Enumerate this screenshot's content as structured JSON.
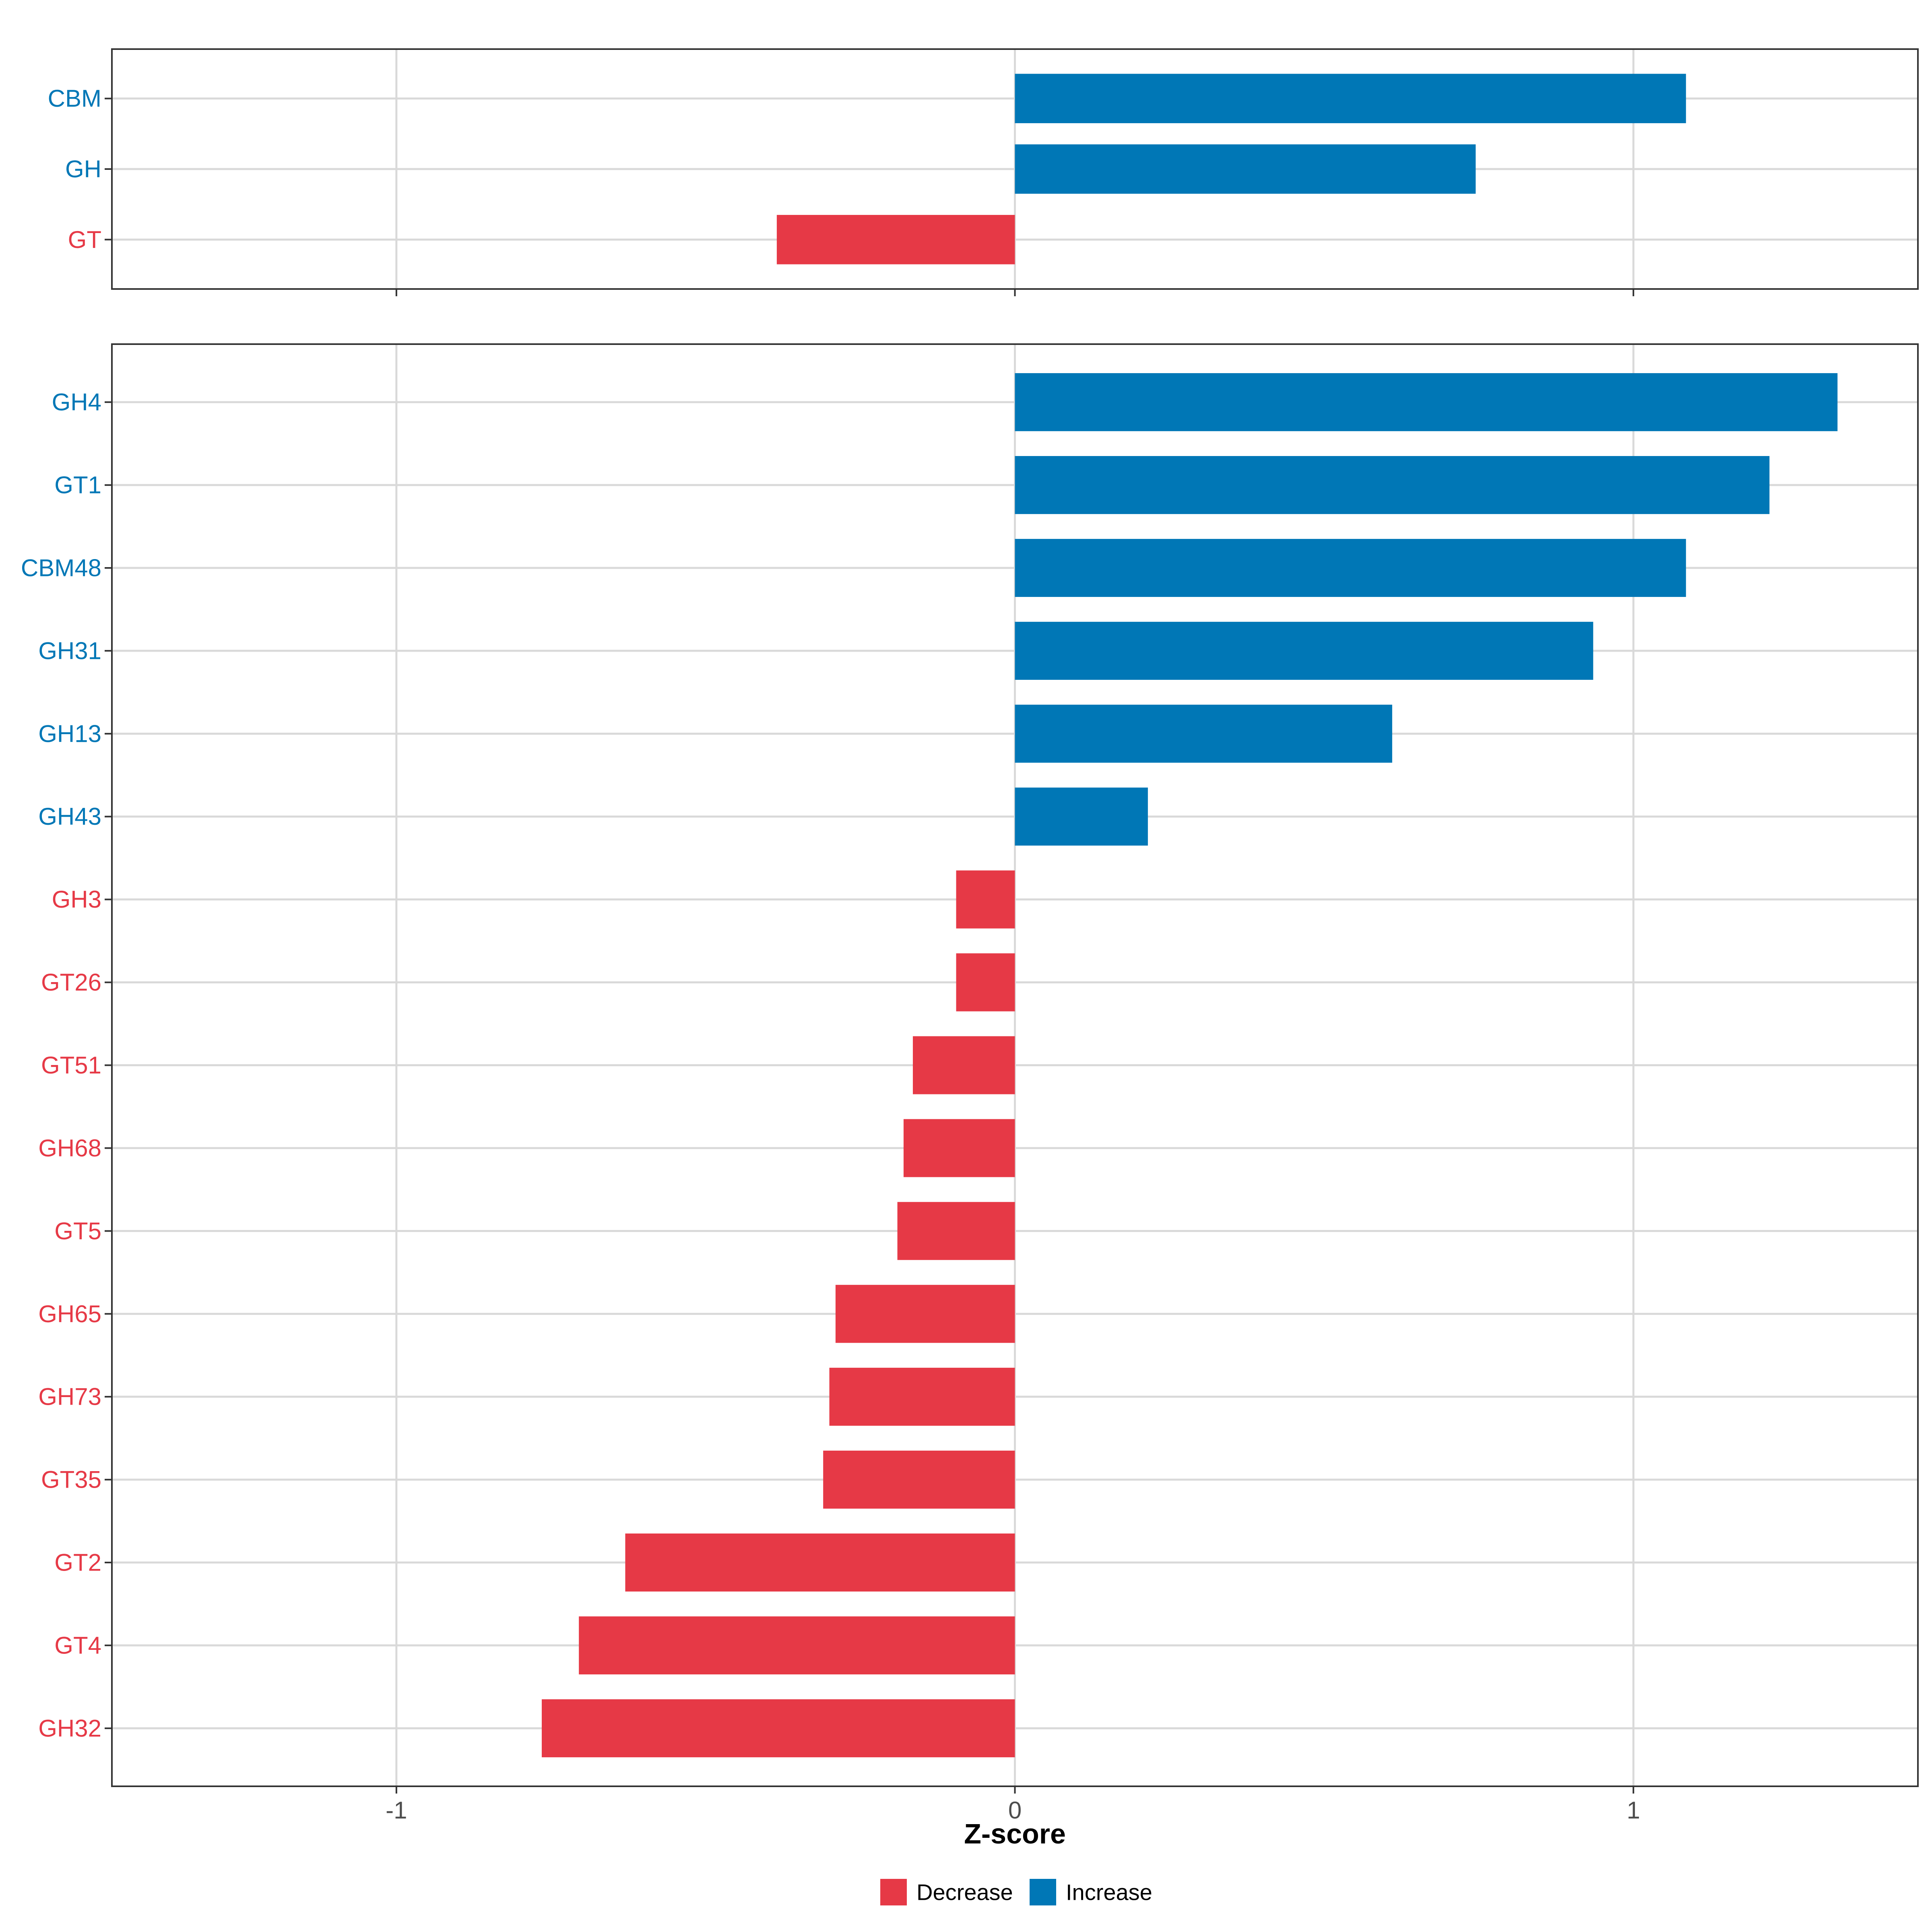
{
  "chart_data": [
    {
      "type": "bar",
      "orientation": "horizontal",
      "categories": [
        "CBM",
        "GH",
        "GT"
      ],
      "values": [
        1.085,
        0.745,
        -0.385
      ],
      "xlim": [
        -1.46,
        1.46
      ],
      "xticks": [
        -1,
        0,
        1
      ],
      "grid": true
    },
    {
      "type": "bar",
      "orientation": "horizontal",
      "categories": [
        "GH4",
        "GT1",
        "CBM48",
        "GH31",
        "GH13",
        "GH43",
        "GH3",
        "GT26",
        "GT51",
        "GH68",
        "GT5",
        "GH65",
        "GH73",
        "GT35",
        "GT2",
        "GT4",
        "GH32"
      ],
      "values": [
        1.33,
        1.22,
        1.085,
        0.935,
        0.61,
        0.215,
        -0.095,
        -0.095,
        -0.165,
        -0.18,
        -0.19,
        -0.29,
        -0.3,
        -0.31,
        -0.63,
        -0.705,
        -0.765
      ],
      "xlim": [
        -1.46,
        1.46
      ],
      "xticks": [
        -1,
        0,
        1
      ],
      "xtick_labels": [
        "-1",
        "0",
        "1"
      ],
      "xlabel": "Z-score",
      "grid": true
    }
  ],
  "legend": {
    "placement": "bottom",
    "items": [
      {
        "label": "Decrease",
        "color": "#E63946"
      },
      {
        "label": "Increase",
        "color": "#0077B6"
      }
    ]
  },
  "colors": {
    "decrease": "#E63946",
    "increase": "#0077B6",
    "grid": "#D9D9D9",
    "border": "#333333"
  }
}
